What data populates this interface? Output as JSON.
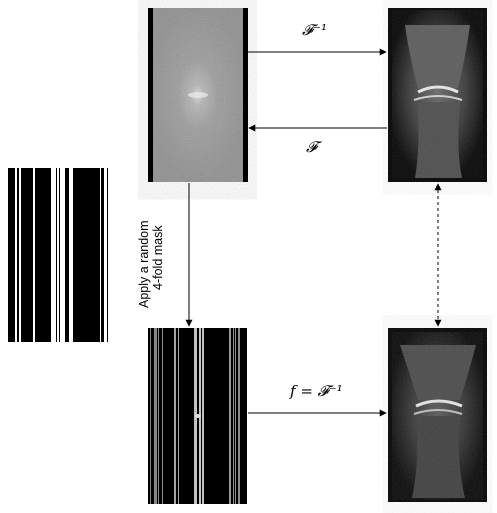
{
  "labels": {
    "inverse_top": "𝓕⁻¹",
    "forward": "𝓕",
    "inverse_bottom": "f = 𝓕⁻¹",
    "mask_line1": "Apply a random",
    "mask_line2": "4-fold mask"
  },
  "colors": {
    "arrow": "#000000",
    "background": "#ffffff"
  },
  "panels": {
    "mask": "undersampling-mask-pattern",
    "kspace_full": "full-kspace-image",
    "image_full": "knee-mri-reconstruction",
    "kspace_masked": "masked-kspace-image",
    "image_masked": "knee-mri-aliased-reconstruction"
  }
}
